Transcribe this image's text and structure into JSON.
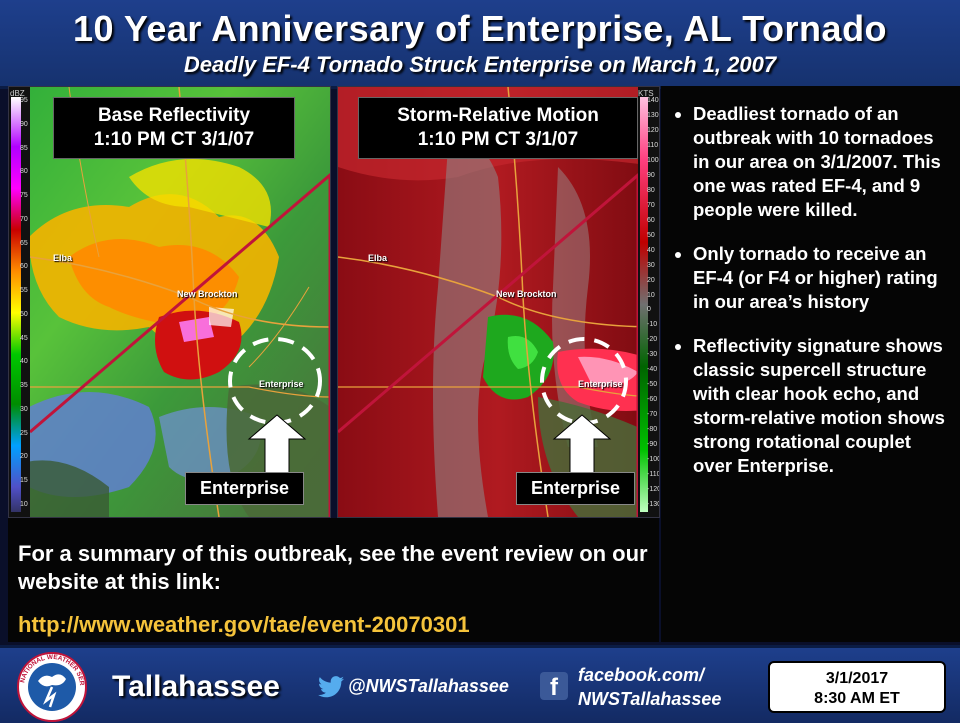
{
  "header": {
    "title": "10 Year Anniversary of Enterprise, AL Tornado",
    "subtitle": "Deadly EF-4 Tornado Struck Enterprise on March 1, 2007"
  },
  "panels": [
    {
      "title_line1": "Base Reflectivity",
      "title_line2": "1:10 PM CT 3/1/07",
      "location_label": "Enterprise",
      "scale_unit": "dBZ",
      "scale_ticks": [
        "95",
        "90",
        "85",
        "80",
        "75",
        "70",
        "65",
        "60",
        "55",
        "50",
        "45",
        "40",
        "35",
        "30",
        "25",
        "20",
        "15",
        "10"
      ]
    },
    {
      "title_line1": "Storm-Relative Motion",
      "title_line2": "1:10 PM CT 3/1/07",
      "location_label": "Enterprise",
      "scale_unit": "KTS",
      "scale_ticks": [
        "140",
        "130",
        "120",
        "110",
        "100",
        "90",
        "80",
        "70",
        "60",
        "50",
        "40",
        "30",
        "20",
        "10",
        "0",
        "-10",
        "-20",
        "-30",
        "-40",
        "-50",
        "-60",
        "-70",
        "-80",
        "-90",
        "-100",
        "-110",
        "-120",
        "-130"
      ]
    }
  ],
  "map_labels": {
    "elba": "Elba",
    "new_brockton": "New Brockton",
    "enterprise": "Enterprise"
  },
  "bullets": [
    "Deadliest tornado of an outbreak with 10 tornadoes in our area on 3/1/2007. This one was rated EF-4, and 9 people were killed.",
    "Only tornado to receive an EF-4 (or F4 or higher) rating in our area’s history",
    "Reflectivity signature shows classic supercell structure with clear hook echo, and storm-relative motion shows strong rotational couplet over Enterprise."
  ],
  "summary": {
    "text": "For a summary of this outbreak, see the event review on our website at this link:",
    "link": "http://www.weather.gov/tae/event-20070301"
  },
  "footer": {
    "office": "Tallahassee",
    "twitter": "@NWSTallahassee",
    "facebook_line1": "facebook.com/",
    "facebook_line2": "NWSTallahassee",
    "date": "3/1/2017",
    "time": "8:30 AM ET",
    "logo_text": "NATIONAL WEATHER SERVICE"
  },
  "colors": {
    "header_blue": "#1e3f8c",
    "link_yellow": "#f5c33b",
    "county_line": "#c0143a",
    "road_orange": "#e8a23c"
  }
}
